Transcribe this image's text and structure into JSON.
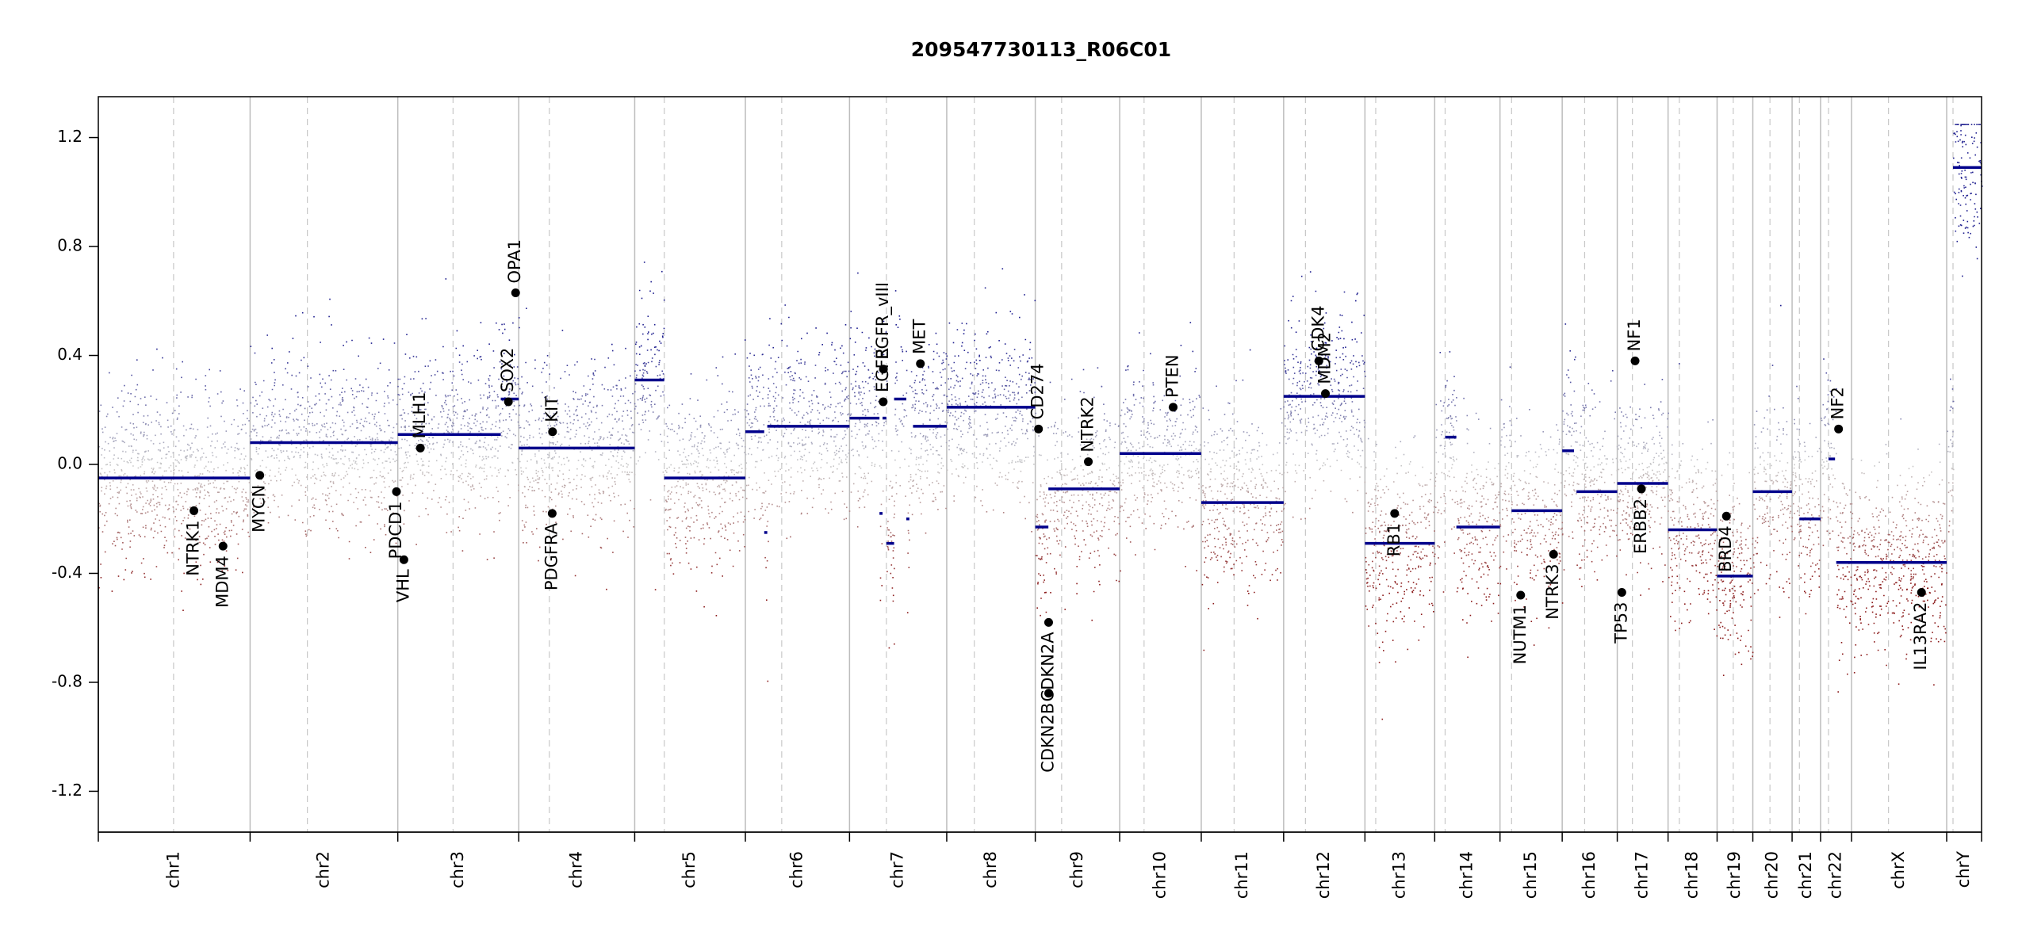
{
  "chart_data": {
    "type": "scatter",
    "title": "209547730113_R06C01",
    "xlabel": "",
    "ylabel": "",
    "ylim": [
      -1.35,
      1.35
    ],
    "yticks": [
      -1.2,
      -0.8,
      -0.4,
      0.0,
      0.4,
      0.8,
      1.2
    ],
    "ytick_labels": [
      "-1.2",
      "-0.8",
      "-0.4",
      "0.0",
      "0.4",
      "0.8",
      "1.2"
    ],
    "grid": false,
    "point_color_scale": {
      "gain": "#1f1f8f",
      "neutral": "#c8c8c8",
      "loss": "#8b1a1a"
    },
    "segment_color": "#00008b",
    "chromosomes": [
      {
        "name": "chr1",
        "start": 0,
        "end": 248.9,
        "centromere": 123.4
      },
      {
        "name": "chr2",
        "start": 248.9,
        "end": 491.1,
        "centromere": 342.8
      },
      {
        "name": "chr3",
        "start": 491.1,
        "end": 689.4,
        "centromere": 581.7
      },
      {
        "name": "chr4",
        "start": 689.4,
        "end": 879.6,
        "centromere": 739.6
      },
      {
        "name": "chr5",
        "start": 879.6,
        "end": 1061.1,
        "centromere": 928.1
      },
      {
        "name": "chr6",
        "start": 1061.1,
        "end": 1231.9,
        "centromere": 1120.7
      },
      {
        "name": "chr7",
        "start": 1231.9,
        "end": 1391.3,
        "centromere": 1292.3
      },
      {
        "name": "chr8",
        "start": 1391.3,
        "end": 1536.5,
        "centromere": 1436.5
      },
      {
        "name": "chr9",
        "start": 1536.5,
        "end": 1674.9,
        "centromere": 1579.7
      },
      {
        "name": "chr10",
        "start": 1674.9,
        "end": 1808.7,
        "centromere": 1714.9
      },
      {
        "name": "chr11",
        "start": 1808.7,
        "end": 1943.8,
        "centromere": 1862.5
      },
      {
        "name": "chr12",
        "start": 1943.8,
        "end": 2077.1,
        "centromere": 1979.6
      },
      {
        "name": "chr13",
        "start": 2077.1,
        "end": 2191.5,
        "centromere": 2094.8
      },
      {
        "name": "chr14",
        "start": 2191.5,
        "end": 2298.6,
        "centromere": 2208.6
      },
      {
        "name": "chr15",
        "start": 2298.6,
        "end": 2400.6,
        "centromere": 2317.6
      },
      {
        "name": "chr16",
        "start": 2400.6,
        "end": 2490.9,
        "centromere": 2437.4
      },
      {
        "name": "chr17",
        "start": 2490.9,
        "end": 2574.2,
        "centromere": 2515.7
      },
      {
        "name": "chr18",
        "start": 2574.2,
        "end": 2654.6,
        "centromere": 2592.7
      },
      {
        "name": "chr19",
        "start": 2654.6,
        "end": 2713.2,
        "centromere": 2681.1
      },
      {
        "name": "chr20",
        "start": 2713.2,
        "end": 2777.6,
        "centromere": 2741.3
      },
      {
        "name": "chr21",
        "start": 2777.6,
        "end": 2824.3,
        "centromere": 2789.6
      },
      {
        "name": "chr22",
        "start": 2824.3,
        "end": 2875.1,
        "centromere": 2837.3
      },
      {
        "name": "chrX",
        "start": 2875.1,
        "end": 3031.1,
        "centromere": 2935.7
      },
      {
        "name": "chrY",
        "start": 3031.1,
        "end": 3088.3,
        "centromere": 3041.5
      }
    ],
    "segments": [
      {
        "chr": "chr1",
        "x0": 0,
        "x1": 248.9,
        "y": -0.05
      },
      {
        "chr": "chr2",
        "x0": 248.9,
        "x1": 491.1,
        "y": 0.08
      },
      {
        "chr": "chr3",
        "x0": 491.1,
        "x1": 660,
        "y": 0.11
      },
      {
        "chr": "chr3",
        "x0": 660,
        "x1": 689.4,
        "y": 0.24
      },
      {
        "chr": "chr4",
        "x0": 689.4,
        "x1": 879.6,
        "y": 0.06
      },
      {
        "chr": "chr5",
        "x0": 879.6,
        "x1": 928,
        "y": 0.31
      },
      {
        "chr": "chr5",
        "x0": 928,
        "x1": 1061.1,
        "y": -0.05
      },
      {
        "chr": "chr6",
        "x0": 1061.1,
        "x1": 1092,
        "y": 0.12
      },
      {
        "chr": "chr6",
        "x0": 1092,
        "x1": 1097,
        "y": -0.25
      },
      {
        "chr": "chr6",
        "x0": 1097,
        "x1": 1231.9,
        "y": 0.14
      },
      {
        "chr": "chr7",
        "x0": 1231.9,
        "x1": 1281,
        "y": 0.17
      },
      {
        "chr": "chr7",
        "x0": 1281,
        "x1": 1286,
        "y": -0.18
      },
      {
        "chr": "chr7",
        "x0": 1286,
        "x1": 1292.3,
        "y": 0.17
      },
      {
        "chr": "chr7",
        "x0": 1292.3,
        "x1": 1305,
        "y": -0.29
      },
      {
        "chr": "chr7",
        "x0": 1305,
        "x1": 1325,
        "y": 0.24
      },
      {
        "chr": "chr7",
        "x0": 1325,
        "x1": 1330,
        "y": -0.2
      },
      {
        "chr": "chr7",
        "x0": 1336,
        "x1": 1391.3,
        "y": 0.14
      },
      {
        "chr": "chr8",
        "x0": 1391.3,
        "x1": 1536.5,
        "y": 0.21
      },
      {
        "chr": "chr9",
        "x0": 1536.5,
        "x1": 1558,
        "y": -0.23
      },
      {
        "chr": "chr9",
        "x0": 1558,
        "x1": 1674.9,
        "y": -0.09
      },
      {
        "chr": "chr10",
        "x0": 1674.9,
        "x1": 1808.7,
        "y": 0.04
      },
      {
        "chr": "chr11",
        "x0": 1808.7,
        "x1": 1943.8,
        "y": -0.14
      },
      {
        "chr": "chr12",
        "x0": 1943.8,
        "x1": 2077.1,
        "y": 0.25
      },
      {
        "chr": "chr13",
        "x0": 2077.1,
        "x1": 2191.5,
        "y": -0.29
      },
      {
        "chr": "chr14",
        "x0": 2208.6,
        "x1": 2227,
        "y": 0.1
      },
      {
        "chr": "chr14",
        "x0": 2227,
        "x1": 2298.6,
        "y": -0.23
      },
      {
        "chr": "chr15",
        "x0": 2317.6,
        "x1": 2400.6,
        "y": -0.17
      },
      {
        "chr": "chr16",
        "x0": 2400.6,
        "x1": 2420,
        "y": 0.05
      },
      {
        "chr": "chr16",
        "x0": 2424,
        "x1": 2490.9,
        "y": -0.1
      },
      {
        "chr": "chr17",
        "x0": 2490.9,
        "x1": 2574.2,
        "y": -0.07
      },
      {
        "chr": "chr18",
        "x0": 2574.2,
        "x1": 2654.6,
        "y": -0.24
      },
      {
        "chr": "chr19",
        "x0": 2654.6,
        "x1": 2713.2,
        "y": -0.41
      },
      {
        "chr": "chr20",
        "x0": 2713.2,
        "x1": 2777.6,
        "y": -0.1
      },
      {
        "chr": "chr21",
        "x0": 2789.6,
        "x1": 2824.3,
        "y": -0.2
      },
      {
        "chr": "chr22",
        "x0": 2837.3,
        "x1": 2848,
        "y": 0.02
      },
      {
        "chr": "chr22",
        "x0": 2850,
        "x1": 2875.1,
        "y": -0.36
      },
      {
        "chr": "chrX",
        "x0": 2875.1,
        "x1": 3031.1,
        "y": -0.36
      },
      {
        "chr": "chrY",
        "x0": 3041.5,
        "x1": 3088.3,
        "y": 1.09
      }
    ],
    "genes": [
      {
        "name": "NTRK1",
        "x": 156.8,
        "y": -0.17
      },
      {
        "name": "MDM4",
        "x": 204.5,
        "y": -0.3
      },
      {
        "name": "MYCN",
        "x": 264.8,
        "y": -0.04
      },
      {
        "name": "PDCD1",
        "x": 488.9,
        "y": -0.1
      },
      {
        "name": "VHL",
        "x": 501.1,
        "y": -0.35
      },
      {
        "name": "MLH1",
        "x": 528.1,
        "y": 0.06
      },
      {
        "name": "SOX2",
        "x": 672.5,
        "y": 0.23
      },
      {
        "name": "OPA1",
        "x": 684.3,
        "y": 0.63
      },
      {
        "name": "KIT",
        "x": 744.9,
        "y": 0.12
      },
      {
        "name": "PDGFRA",
        "x": 744.3,
        "y": -0.18
      },
      {
        "name": "EGFR",
        "x": 1287.1,
        "y": 0.23
      },
      {
        "name": "EGFR_vIII",
        "x": 1287.5,
        "y": 0.35
      },
      {
        "name": "MET",
        "x": 1348.1,
        "y": 0.37
      },
      {
        "name": "CD274",
        "x": 1541.8,
        "y": 0.13
      },
      {
        "name": "CDKN2A",
        "x": 1558.4,
        "y": -0.58
      },
      {
        "name": "CDKN2B",
        "x": 1558.5,
        "y": -0.84
      },
      {
        "name": "NTRK2",
        "x": 1623.5,
        "y": 0.01
      },
      {
        "name": "PTEN",
        "x": 1762.6,
        "y": 0.21
      },
      {
        "name": "CDK4",
        "x": 2001.6,
        "y": 0.38
      },
      {
        "name": "MDM2",
        "x": 2012.3,
        "y": 0.26
      },
      {
        "name": "RB1",
        "x": 2125.8,
        "y": -0.18
      },
      {
        "name": "NUTM1",
        "x": 2332.5,
        "y": -0.48
      },
      {
        "name": "NTRK3",
        "x": 2386.4,
        "y": -0.33
      },
      {
        "name": "TP53",
        "x": 2498.4,
        "y": -0.47
      },
      {
        "name": "NF1",
        "x": 2520.1,
        "y": 0.38
      },
      {
        "name": "ERBB2",
        "x": 2530.5,
        "y": -0.09
      },
      {
        "name": "BRD4",
        "x": 2669.9,
        "y": -0.19
      },
      {
        "name": "NF2",
        "x": 2853.8,
        "y": 0.13
      },
      {
        "name": "IL13RA2",
        "x": 2989.8,
        "y": -0.47
      }
    ]
  }
}
